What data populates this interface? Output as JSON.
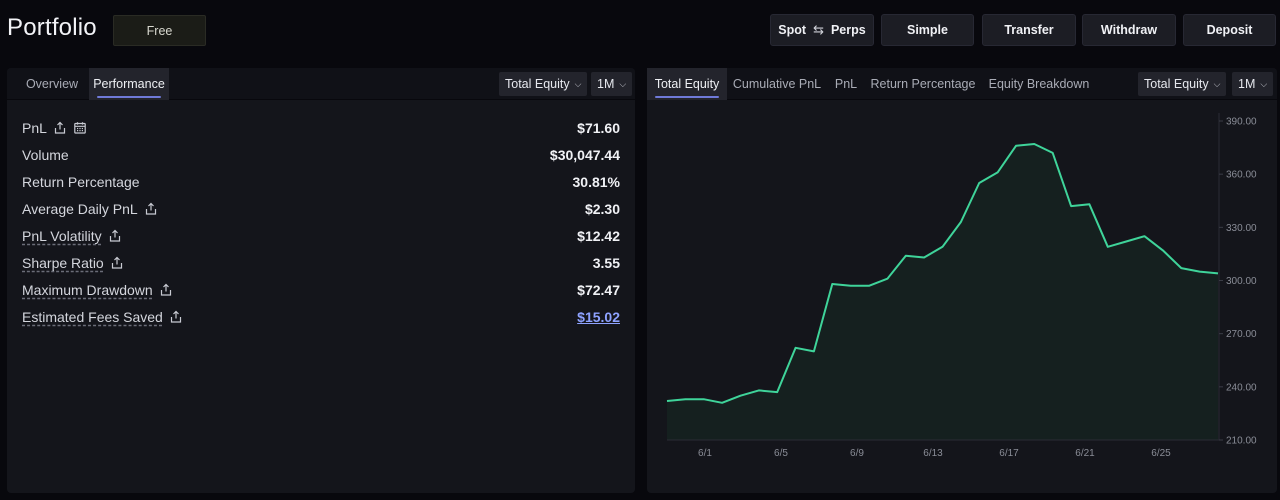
{
  "header": {
    "title": "Portfolio",
    "tier_badge": "Free",
    "spot_label": "Spot",
    "perps_label": "Perps",
    "swap_icon": "swap-arrows-icon",
    "buttons": {
      "simple": "Simple",
      "transfer": "Transfer",
      "withdraw": "Withdraw",
      "deposit": "Deposit"
    }
  },
  "left_panel": {
    "tabs": [
      "Overview",
      "Performance"
    ],
    "active_tab": "Performance",
    "metric_dropdown": "Total Equity",
    "range_dropdown": "1M",
    "metrics": [
      {
        "label": "PnL",
        "value": "$71.60",
        "icons": [
          "share-icon",
          "calendar-icon"
        ]
      },
      {
        "label": "Volume",
        "value": "$30,047.44"
      },
      {
        "label": "Return Percentage",
        "value": "30.81%"
      },
      {
        "label": "Average Daily PnL",
        "value": "$2.30",
        "icons": [
          "share-icon"
        ]
      },
      {
        "label": "PnL Volatility",
        "value": "$12.42",
        "icons": [
          "share-icon"
        ]
      },
      {
        "label": "Sharpe Ratio",
        "value": "3.55",
        "icons": [
          "share-icon"
        ]
      },
      {
        "label": "Maximum Drawdown",
        "value": "$72.47",
        "icons": [
          "share-icon"
        ]
      },
      {
        "label": "Estimated Fees Saved",
        "value": "$15.02",
        "icons": [
          "share-icon"
        ]
      }
    ]
  },
  "right_panel": {
    "tabs": [
      "Total Equity",
      "Cumulative PnL",
      "PnL",
      "Return Percentage",
      "Equity Breakdown"
    ],
    "active_tab": "Total Equity",
    "metric_dropdown": "Total Equity",
    "range_dropdown": "1M"
  },
  "colors": {
    "accent_tab": "#6f7ad9",
    "line": "#3fd49a",
    "area": "#15201f",
    "link": "#8ea2ff"
  },
  "chart_data": {
    "type": "area",
    "ylim": [
      210,
      390
    ],
    "yticks": [
      "390.00",
      "360.00",
      "330.00",
      "300.00",
      "270.00",
      "240.00",
      "210.00"
    ],
    "xticks": [
      "6/1",
      "6/5",
      "6/9",
      "6/13",
      "6/17",
      "6/21",
      "6/25"
    ],
    "grid": false,
    "series": [
      {
        "values": [
          {
            "x": "5/30",
            "y": 232
          },
          {
            "x": "5/31",
            "y": 233
          },
          {
            "x": "5/31",
            "y": 233
          },
          {
            "x": "6/1",
            "y": 231
          },
          {
            "x": "6/1",
            "y": 235
          },
          {
            "x": "6/2",
            "y": 238
          },
          {
            "x": "6/3",
            "y": 237
          },
          {
            "x": "6/4",
            "y": 262
          },
          {
            "x": "6/6",
            "y": 260
          },
          {
            "x": "6/7",
            "y": 298
          },
          {
            "x": "6/8",
            "y": 297
          },
          {
            "x": "6/9",
            "y": 297
          },
          {
            "x": "6/10",
            "y": 301
          },
          {
            "x": "6/11",
            "y": 314
          },
          {
            "x": "6/12",
            "y": 313
          },
          {
            "x": "6/13",
            "y": 319
          },
          {
            "x": "6/14",
            "y": 333
          },
          {
            "x": "6/15",
            "y": 355
          },
          {
            "x": "6/16",
            "y": 361
          },
          {
            "x": "6/17",
            "y": 376
          },
          {
            "x": "6/18",
            "y": 377
          },
          {
            "x": "6/19",
            "y": 372
          },
          {
            "x": "6/20",
            "y": 342
          },
          {
            "x": "6/21",
            "y": 343
          },
          {
            "x": "6/22",
            "y": 319
          },
          {
            "x": "6/23",
            "y": 322
          },
          {
            "x": "6/24",
            "y": 325
          },
          {
            "x": "6/25",
            "y": 317
          },
          {
            "x": "6/26",
            "y": 307
          },
          {
            "x": "6/27",
            "y": 305
          },
          {
            "x": "6/28",
            "y": 304
          }
        ]
      }
    ]
  }
}
